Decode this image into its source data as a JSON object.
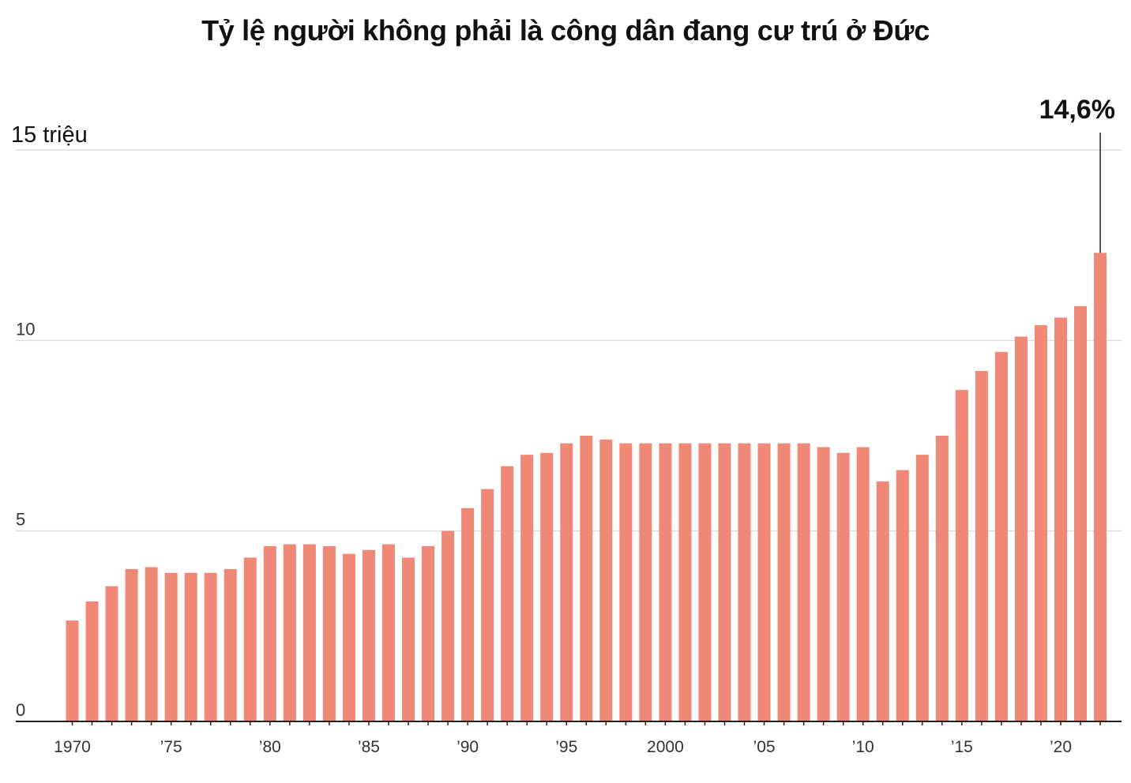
{
  "chart_data": {
    "type": "bar",
    "title": "Tỷ lệ người không phải là công dân đang cư trú ở Đức",
    "ylim": [
      0,
      15
    ],
    "y_ticks": [
      {
        "value": 0,
        "label": "0"
      },
      {
        "value": 5,
        "label": "5"
      },
      {
        "value": 10,
        "label": "10"
      },
      {
        "value": 15,
        "label": "15 triệu"
      }
    ],
    "x": [
      1970,
      1971,
      1972,
      1973,
      1974,
      1975,
      1976,
      1977,
      1978,
      1979,
      1980,
      1981,
      1982,
      1983,
      1984,
      1985,
      1986,
      1987,
      1988,
      1989,
      1990,
      1991,
      1992,
      1993,
      1994,
      1995,
      1996,
      1997,
      1998,
      1999,
      2000,
      2001,
      2002,
      2003,
      2004,
      2005,
      2006,
      2007,
      2008,
      2009,
      2010,
      2011,
      2012,
      2013,
      2014,
      2015,
      2016,
      2017,
      2018,
      2019,
      2020,
      2021,
      2022
    ],
    "values": [
      2.65,
      3.15,
      3.55,
      4.0,
      4.05,
      3.9,
      3.9,
      3.9,
      4.0,
      4.3,
      4.6,
      4.65,
      4.65,
      4.6,
      4.4,
      4.5,
      4.65,
      4.3,
      4.6,
      5.0,
      5.6,
      6.1,
      6.7,
      7.0,
      7.05,
      7.3,
      7.5,
      7.4,
      7.3,
      7.3,
      7.3,
      7.3,
      7.3,
      7.3,
      7.3,
      7.3,
      7.3,
      7.3,
      7.2,
      7.05,
      7.2,
      6.3,
      6.6,
      7.0,
      7.5,
      8.7,
      9.2,
      9.7,
      10.1,
      10.4,
      10.6,
      10.9,
      12.3
    ],
    "x_tick_labels": [
      {
        "year": 1970,
        "label": "1970"
      },
      {
        "year": 1975,
        "label": "’75"
      },
      {
        "year": 1980,
        "label": "’80"
      },
      {
        "year": 1985,
        "label": "’85"
      },
      {
        "year": 1990,
        "label": "’90"
      },
      {
        "year": 1995,
        "label": "’95"
      },
      {
        "year": 2000,
        "label": "2000"
      },
      {
        "year": 2005,
        "label": "’05"
      },
      {
        "year": 2010,
        "label": "’10"
      },
      {
        "year": 2015,
        "label": "’15"
      },
      {
        "year": 2020,
        "label": "’20"
      }
    ],
    "annotation": {
      "year": 2022,
      "label": "14,6%"
    },
    "grid": true,
    "legend": "none",
    "colors": {
      "bar": "#f08878",
      "grid": "#dddddd",
      "axis": "#222222",
      "annotation_line": "#222222"
    }
  }
}
